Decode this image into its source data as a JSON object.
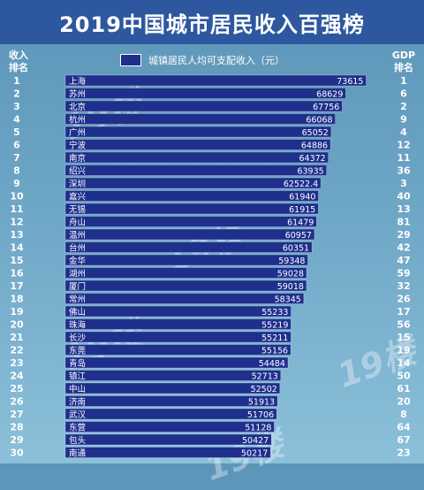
{
  "header": {
    "title": "2019中国城市居民收入百强榜"
  },
  "columns": {
    "left_head": [
      "收入",
      "排名"
    ],
    "right_head": [
      "GDP",
      "排名"
    ]
  },
  "watermark": "19楼",
  "chart_data": {
    "type": "bar",
    "orientation": "horizontal",
    "legend": {
      "label": "城镇居民人均可支配收入（元）",
      "position": "top"
    },
    "series_color": "#1f2f8c",
    "xlim": [
      0,
      80000
    ],
    "grid": false,
    "rows": [
      {
        "rank": 1,
        "city": "上海",
        "value": 73615,
        "label": "73615",
        "gdp_rank": 1
      },
      {
        "rank": 2,
        "city": "苏州",
        "value": 68629,
        "label": "68629",
        "gdp_rank": 6
      },
      {
        "rank": 3,
        "city": "北京",
        "value": 67756,
        "label": "67756",
        "gdp_rank": 2
      },
      {
        "rank": 4,
        "city": "杭州",
        "value": 66068,
        "label": "66068",
        "gdp_rank": 9
      },
      {
        "rank": 5,
        "city": "广州",
        "value": 65052,
        "label": "65052",
        "gdp_rank": 4
      },
      {
        "rank": 6,
        "city": "宁波",
        "value": 64886,
        "label": "64886",
        "gdp_rank": 12
      },
      {
        "rank": 7,
        "city": "南京",
        "value": 64372,
        "label": "64372",
        "gdp_rank": 11
      },
      {
        "rank": 8,
        "city": "绍兴",
        "value": 63935,
        "label": "63935",
        "gdp_rank": 36
      },
      {
        "rank": 9,
        "city": "深圳",
        "value": 62522.4,
        "label": "62522.4",
        "gdp_rank": 3
      },
      {
        "rank": 10,
        "city": "嘉兴",
        "value": 61940,
        "label": "61940",
        "gdp_rank": 40
      },
      {
        "rank": 11,
        "city": "无锡",
        "value": 61915,
        "label": "61915",
        "gdp_rank": 13
      },
      {
        "rank": 12,
        "city": "舟山",
        "value": 61479,
        "label": "61479",
        "gdp_rank": 81
      },
      {
        "rank": 13,
        "city": "温州",
        "value": 60957,
        "label": "60957",
        "gdp_rank": 29
      },
      {
        "rank": 14,
        "city": "台州",
        "value": 60351,
        "label": "60351",
        "gdp_rank": 42
      },
      {
        "rank": 15,
        "city": "金华",
        "value": 59348,
        "label": "59348",
        "gdp_rank": 47
      },
      {
        "rank": 16,
        "city": "湖州",
        "value": 59028,
        "label": "59028",
        "gdp_rank": 59
      },
      {
        "rank": 17,
        "city": "厦门",
        "value": 59018,
        "label": "59018",
        "gdp_rank": 32
      },
      {
        "rank": 18,
        "city": "常州",
        "value": 58345,
        "label": "58345",
        "gdp_rank": 26
      },
      {
        "rank": 19,
        "city": "佛山",
        "value": 55233,
        "label": "55233",
        "gdp_rank": 17
      },
      {
        "rank": 20,
        "city": "珠海",
        "value": 55219,
        "label": "55219",
        "gdp_rank": 56
      },
      {
        "rank": 21,
        "city": "长沙",
        "value": 55211,
        "label": "55211",
        "gdp_rank": 15
      },
      {
        "rank": 22,
        "city": "东莞",
        "value": 55156,
        "label": "55156",
        "gdp_rank": 19
      },
      {
        "rank": 23,
        "city": "青岛",
        "value": 54484,
        "label": "54484",
        "gdp_rank": 14
      },
      {
        "rank": 24,
        "city": "镇江",
        "value": 52713,
        "label": "52713",
        "gdp_rank": 50
      },
      {
        "rank": 25,
        "city": "中山",
        "value": 52502,
        "label": "52502",
        "gdp_rank": 61
      },
      {
        "rank": 26,
        "city": "济南",
        "value": 51913,
        "label": "51913",
        "gdp_rank": 20
      },
      {
        "rank": 27,
        "city": "武汉",
        "value": 51706,
        "label": "51706",
        "gdp_rank": 8
      },
      {
        "rank": 28,
        "city": "东营",
        "value": 51128,
        "label": "51128",
        "gdp_rank": 64
      },
      {
        "rank": 29,
        "city": "包头",
        "value": 50427,
        "label": "50427",
        "gdp_rank": 67
      },
      {
        "rank": 30,
        "city": "南通",
        "value": 50217,
        "label": "50217",
        "gdp_rank": 23
      }
    ]
  }
}
